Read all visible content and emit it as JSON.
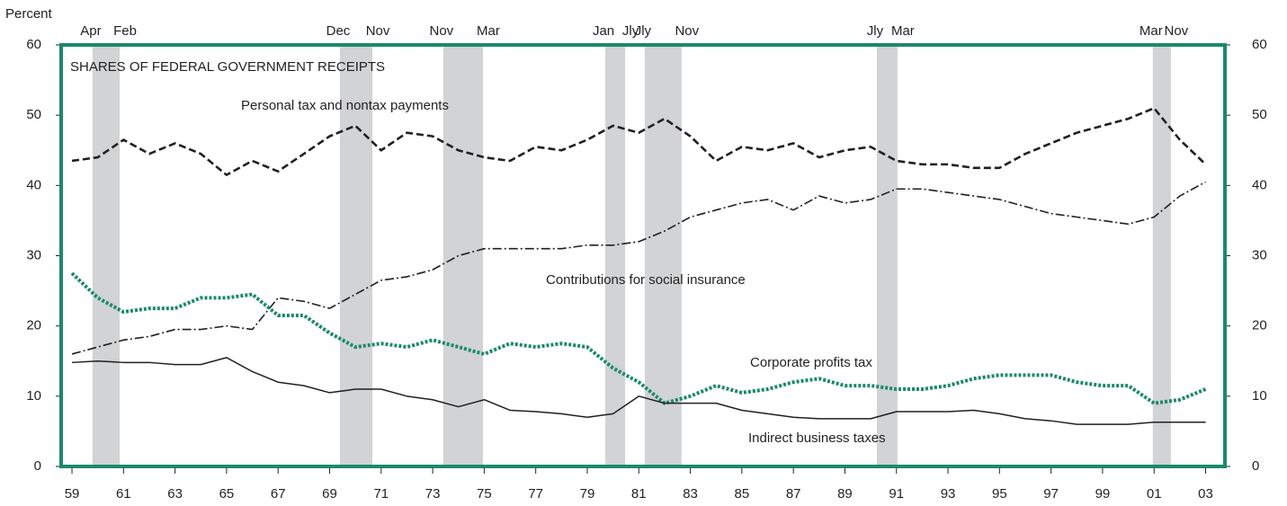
{
  "chart_data": {
    "type": "line",
    "title": "SHARES OF FEDERAL GOVERNMENT RECEIPTS",
    "y_axis_label": "Percent",
    "x": [
      1959,
      1960,
      1961,
      1962,
      1963,
      1964,
      1965,
      1966,
      1967,
      1968,
      1969,
      1970,
      1971,
      1972,
      1973,
      1974,
      1975,
      1976,
      1977,
      1978,
      1979,
      1980,
      1981,
      1982,
      1983,
      1984,
      1985,
      1986,
      1987,
      1988,
      1989,
      1990,
      1991,
      1992,
      1993,
      1994,
      1995,
      1996,
      1997,
      1998,
      1999,
      2000,
      2001,
      2002,
      2003
    ],
    "series": [
      {
        "name": "Personal tax and nontax payments",
        "color": "#231f20",
        "style": "dashed",
        "values": [
          43.5,
          44,
          46.5,
          44.5,
          46,
          44.5,
          41.5,
          43.5,
          42,
          44.5,
          47,
          48.5,
          45,
          47.5,
          47,
          45,
          44,
          43.5,
          45.5,
          45,
          46.5,
          48.5,
          47.5,
          49.5,
          47,
          43.5,
          45.5,
          45,
          46,
          44,
          45,
          45.5,
          43.5,
          43,
          43,
          42.5,
          42.5,
          44.5,
          46,
          47.5,
          48.5,
          49.5,
          51,
          46.5,
          43
        ]
      },
      {
        "name": "Contributions for social insurance",
        "color": "#231f20",
        "style": "dashdot",
        "values": [
          16,
          17,
          18,
          18.5,
          19.5,
          19.5,
          20,
          19.5,
          24,
          23.5,
          22.5,
          24.5,
          26.5,
          27,
          28,
          30,
          31,
          31,
          31,
          31,
          31.5,
          31.5,
          32,
          33.5,
          35.5,
          36.5,
          37.5,
          38,
          36.5,
          38.5,
          37.5,
          38,
          39.5,
          39.5,
          39,
          38.5,
          38,
          37,
          36,
          35.5,
          35,
          34.5,
          35.5,
          38.5,
          40.5
        ]
      },
      {
        "name": "Corporate profits tax",
        "color": "#1a8a6a",
        "style": "dotted",
        "values": [
          27.5,
          24,
          22,
          22.5,
          22.5,
          24,
          24,
          24.5,
          21.5,
          21.5,
          19,
          17,
          17.5,
          17,
          18,
          17,
          16,
          17.5,
          17,
          17.5,
          17,
          14,
          12,
          9,
          10,
          11.5,
          10.5,
          11,
          12,
          12.5,
          11.5,
          11.5,
          11,
          11,
          11.5,
          12.5,
          13,
          13,
          13,
          12,
          11.5,
          11.5,
          9,
          9.5,
          11
        ]
      },
      {
        "name": "Indirect business taxes",
        "color": "#231f20",
        "style": "solid",
        "values": [
          14.8,
          15,
          14.8,
          14.8,
          14.5,
          14.5,
          15.5,
          13.5,
          12,
          11.5,
          10.5,
          11,
          11,
          10,
          9.5,
          8.5,
          9.5,
          8,
          7.8,
          7.5,
          7,
          7.5,
          10,
          9,
          9,
          9,
          8,
          7.5,
          7,
          6.8,
          6.8,
          6.8,
          7.8,
          7.8,
          7.8,
          8,
          7.5,
          6.8,
          6.5,
          6,
          6,
          6,
          6.3,
          6.3,
          6.3
        ]
      }
    ],
    "recessions": [
      {
        "start": 1959.8,
        "end": 1960.85,
        "start_label": "Apr",
        "end_label": "Feb"
      },
      {
        "start": 1969.4,
        "end": 1970.66,
        "start_label": "Dec",
        "end_label": "Nov"
      },
      {
        "start": 1973.41,
        "end": 1974.95,
        "start_label": "Nov",
        "end_label": "Mar"
      },
      {
        "start": 1979.7,
        "end": 1980.47,
        "start_label": "Jan",
        "end_label": "Jly"
      },
      {
        "start": 1981.23,
        "end": 1982.66,
        "start_label": "Jly",
        "end_label": "Nov"
      },
      {
        "start": 1990.24,
        "end": 1991.04,
        "start_label": "Jly",
        "end_label": "Mar"
      },
      {
        "start": 2000.95,
        "end": 2001.65,
        "start_label": "Mar",
        "end_label": "Nov"
      }
    ],
    "xlim": [
      1958.58,
      2003.75
    ],
    "xticks": [
      {
        "value": 1959,
        "label": "59"
      },
      {
        "value": 1961,
        "label": "61"
      },
      {
        "value": 1963,
        "label": "63"
      },
      {
        "value": 1965,
        "label": "65"
      },
      {
        "value": 1967,
        "label": "67"
      },
      {
        "value": 1969,
        "label": "69"
      },
      {
        "value": 1971,
        "label": "71"
      },
      {
        "value": 1973,
        "label": "73"
      },
      {
        "value": 1975,
        "label": "75"
      },
      {
        "value": 1977,
        "label": "77"
      },
      {
        "value": 1979,
        "label": "79"
      },
      {
        "value": 1981,
        "label": "81"
      },
      {
        "value": 1983,
        "label": "83"
      },
      {
        "value": 1985,
        "label": "85"
      },
      {
        "value": 1987,
        "label": "87"
      },
      {
        "value": 1989,
        "label": "89"
      },
      {
        "value": 1991,
        "label": "91"
      },
      {
        "value": 1993,
        "label": "93"
      },
      {
        "value": 1995,
        "label": "95"
      },
      {
        "value": 1997,
        "label": "97"
      },
      {
        "value": 1999,
        "label": "99"
      },
      {
        "value": 2001,
        "label": "01"
      },
      {
        "value": 2003,
        "label": "03"
      }
    ],
    "ylim": [
      0,
      60
    ],
    "yticks": [
      0,
      10,
      20,
      30,
      40,
      50,
      60
    ],
    "y2lim": [
      0,
      60
    ],
    "y2ticks": [
      0,
      10,
      20,
      30,
      40,
      50,
      60
    ],
    "frame_color": "#1a8a6a",
    "recession_color": "#d1d3d4"
  }
}
